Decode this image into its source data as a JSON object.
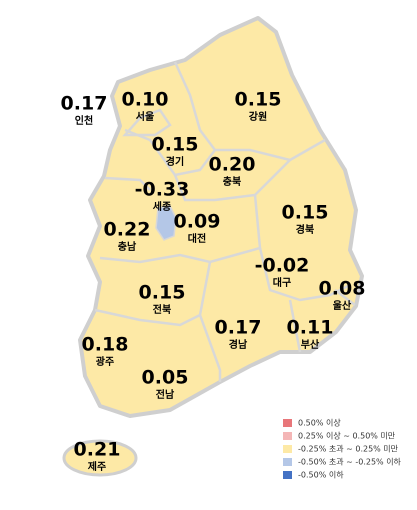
{
  "regions": [
    {
      "name": "인천",
      "value": "0.17",
      "color": "#fde9a6"
    },
    {
      "name": "서울",
      "value": "0.10",
      "color": "#fde9a6"
    },
    {
      "name": "강원",
      "value": "0.15",
      "color": "#fde9a6"
    },
    {
      "name": "경기",
      "value": "0.15",
      "color": "#fde9a6"
    },
    {
      "name": "충북",
      "value": "0.20",
      "color": "#fde9a6"
    },
    {
      "name": "세종",
      "value": "-0.33",
      "color": "#b4c7e7"
    },
    {
      "name": "대전",
      "value": "0.09",
      "color": "#fde9a6"
    },
    {
      "name": "충남",
      "value": "0.22",
      "color": "#fde9a6"
    },
    {
      "name": "경북",
      "value": "0.15",
      "color": "#fde9a6"
    },
    {
      "name": "대구",
      "value": "-0.02",
      "color": "#fde9a6"
    },
    {
      "name": "울산",
      "value": "0.08",
      "color": "#fde9a6"
    },
    {
      "name": "전북",
      "value": "0.15",
      "color": "#fde9a6"
    },
    {
      "name": "경남",
      "value": "0.17",
      "color": "#fde9a6"
    },
    {
      "name": "부산",
      "value": "0.11",
      "color": "#fde9a6"
    },
    {
      "name": "광주",
      "value": "0.18",
      "color": "#fde9a6"
    },
    {
      "name": "전남",
      "value": "0.05",
      "color": "#fde9a6"
    },
    {
      "name": "제주",
      "value": "0.21",
      "color": "#fde9a6"
    }
  ],
  "legend": [
    {
      "label": "0.50% 이상",
      "color": "#e8767a"
    },
    {
      "label": "0.25% 이상 ~ 0.50% 미만",
      "color": "#f4b6b6"
    },
    {
      "label": "-0.25% 초과 ~ 0.25% 미만",
      "color": "#fde9a6"
    },
    {
      "label": "-0.50% 초과 ~ -0.25% 이하",
      "color": "#b4c7e7"
    },
    {
      "label": "-0.50% 이하",
      "color": "#4472c4"
    }
  ]
}
